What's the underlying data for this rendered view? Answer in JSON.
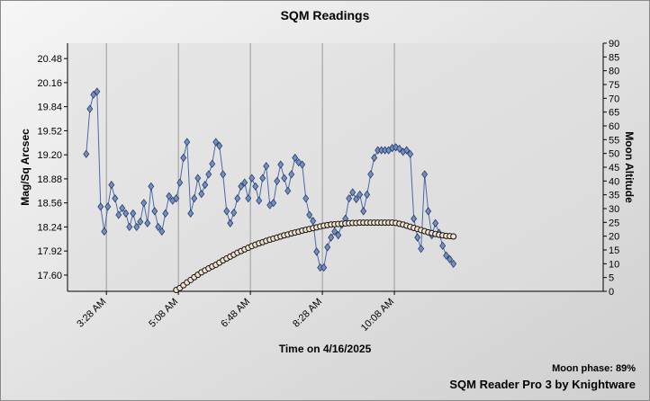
{
  "chart_data": {
    "type": "line",
    "title": "SQM Readings",
    "x_label": "Time on 4/16/2025",
    "y_label": "Mag/Sq Arcsec",
    "y2_label": "Moon Altitude",
    "annotations": [
      "Moon phase: 89%",
      "SQM Reader Pro 3 by Knightware"
    ],
    "grid": "x",
    "xlim": [
      "2:34 AM",
      "2:58 PM"
    ],
    "xticks": [
      "3:28 AM",
      "5:08 AM",
      "6:48 AM",
      "8:28 AM",
      "10:08 AM"
    ],
    "ylim": [
      17.384,
      20.685
    ],
    "yticks": [
      {
        "value": 17.6,
        "label": "17.60"
      },
      17.92,
      18.24,
      18.56,
      18.88,
      {
        "value": 19.2,
        "label": "19.20"
      },
      19.52,
      19.84,
      20.16,
      20.48
    ],
    "y2lim": [
      0,
      90
    ],
    "y2ticks": [
      0,
      5,
      10,
      15,
      20,
      25,
      30,
      35,
      40,
      45,
      50,
      55,
      60,
      65,
      70,
      75,
      80,
      85,
      90
    ],
    "x": [
      "3:00 AM",
      "3:05 AM",
      "3:10 AM",
      "3:15 AM",
      "3:20 AM",
      "3:25 AM",
      "3:30 AM",
      "3:35 AM",
      "3:40 AM",
      "3:45 AM",
      "3:50 AM",
      "3:55 AM",
      "4:00 AM",
      "4:05 AM",
      "4:10 AM",
      "4:15 AM",
      "4:20 AM",
      "4:25 AM",
      "4:30 AM",
      "4:35 AM",
      "4:40 AM",
      "4:45 AM",
      "4:50 AM",
      "4:55 AM",
      "5:00 AM",
      "5:05 AM",
      "5:10 AM",
      "5:15 AM",
      "5:20 AM",
      "5:25 AM",
      "5:30 AM",
      "5:35 AM",
      "5:40 AM",
      "5:45 AM",
      "5:50 AM",
      "5:55 AM",
      "6:00 AM",
      "6:05 AM",
      "6:10 AM",
      "6:15 AM",
      "6:20 AM",
      "6:25 AM",
      "6:30 AM",
      "6:35 AM",
      "6:40 AM",
      "6:45 AM",
      "6:50 AM",
      "6:55 AM",
      "7:00 AM",
      "7:05 AM",
      "7:10 AM",
      "7:15 AM",
      "7:20 AM",
      "7:25 AM",
      "7:30 AM",
      "7:35 AM",
      "7:40 AM",
      "7:45 AM",
      "7:50 AM",
      "7:55 AM",
      "8:00 AM",
      "8:05 AM",
      "8:10 AM",
      "8:15 AM",
      "8:20 AM",
      "8:25 AM",
      "8:30 AM",
      "8:35 AM",
      "8:40 AM",
      "8:45 AM",
      "8:50 AM",
      "8:55 AM",
      "9:00 AM",
      "9:05 AM",
      "9:10 AM",
      "9:15 AM",
      "9:20 AM",
      "9:25 AM",
      "9:30 AM",
      "9:35 AM",
      "9:40 AM",
      "9:45 AM",
      "9:50 AM",
      "9:55 AM",
      "10:00 AM",
      "10:05 AM",
      "10:10 AM",
      "10:15 AM",
      "10:20 AM",
      "10:25 AM",
      "10:30 AM",
      "10:35 AM",
      "10:40 AM",
      "10:45 AM",
      "10:50 AM",
      "10:55 AM",
      "11:00 AM",
      "11:05 AM",
      "11:10 AM",
      "11:15 AM",
      "11:20 AM",
      "11:25 AM",
      "11:30 AM"
    ],
    "series": [
      {
        "color": "#6f8fc6",
        "line_color": "#4a6aa8",
        "marker": "diamond",
        "values": [
          19.21,
          19.81,
          20.0,
          20.04,
          18.51,
          18.18,
          18.51,
          18.8,
          18.62,
          18.4,
          18.49,
          18.42,
          18.24,
          18.42,
          18.24,
          18.31,
          18.56,
          18.29,
          18.78,
          18.45,
          18.24,
          18.18,
          18.42,
          18.65,
          18.59,
          18.62,
          18.83,
          19.16,
          19.37,
          18.42,
          18.62,
          18.89,
          18.68,
          18.8,
          18.94,
          19.08,
          19.37,
          19.32,
          18.94,
          18.45,
          18.29,
          18.43,
          18.62,
          18.78,
          18.83,
          18.62,
          18.89,
          18.78,
          18.59,
          18.89,
          19.05,
          18.53,
          18.56,
          18.85,
          19.07,
          18.89,
          18.72,
          18.94,
          19.16,
          19.1,
          19.07,
          18.62,
          18.4,
          18.32,
          17.91,
          17.7,
          17.7,
          17.97,
          18.1,
          18.18,
          18.13,
          18.27,
          18.35,
          18.62,
          18.7,
          18.61,
          18.67,
          18.45,
          18.67,
          18.94,
          19.16,
          19.26,
          19.26,
          19.26,
          19.26,
          19.29,
          19.3,
          19.28,
          19.24,
          19.26,
          19.21,
          18.35,
          18.1,
          17.95,
          18.94,
          18.45,
          18.13,
          18.29,
          18.16,
          17.99,
          17.86,
          17.81,
          17.75
        ]
      },
      {
        "axis": "y2",
        "color": "#f3e3cc",
        "marker": "circle",
        "values": [
          null,
          null,
          null,
          null,
          null,
          null,
          null,
          null,
          null,
          null,
          null,
          null,
          null,
          null,
          null,
          null,
          null,
          null,
          null,
          null,
          null,
          null,
          null,
          null,
          null,
          0.5,
          1.2,
          2.2,
          3.2,
          4.1,
          5.1,
          6.0,
          6.9,
          7.6,
          8.3,
          9.0,
          9.6,
          10.4,
          11.2,
          11.9,
          12.6,
          13.3,
          14.0,
          14.6,
          15.2,
          15.8,
          16.4,
          16.9,
          17.4,
          17.8,
          18.3,
          18.7,
          19.1,
          19.5,
          19.9,
          20.3,
          20.6,
          21.0,
          21.3,
          21.6,
          22.0,
          22.3,
          22.6,
          22.9,
          23.2,
          23.5,
          23.8,
          24.0,
          24.2,
          24.3,
          24.4,
          24.5,
          24.6,
          24.7,
          24.8,
          24.8,
          24.9,
          24.9,
          24.9,
          24.9,
          24.9,
          24.9,
          24.9,
          24.9,
          24.9,
          24.9,
          24.8,
          24.5,
          24.2,
          23.8,
          23.4,
          23.0,
          22.6,
          22.2,
          21.8,
          21.4,
          21.1,
          20.8,
          20.5,
          20.3,
          20.1,
          20.0,
          19.9
        ]
      }
    ]
  }
}
